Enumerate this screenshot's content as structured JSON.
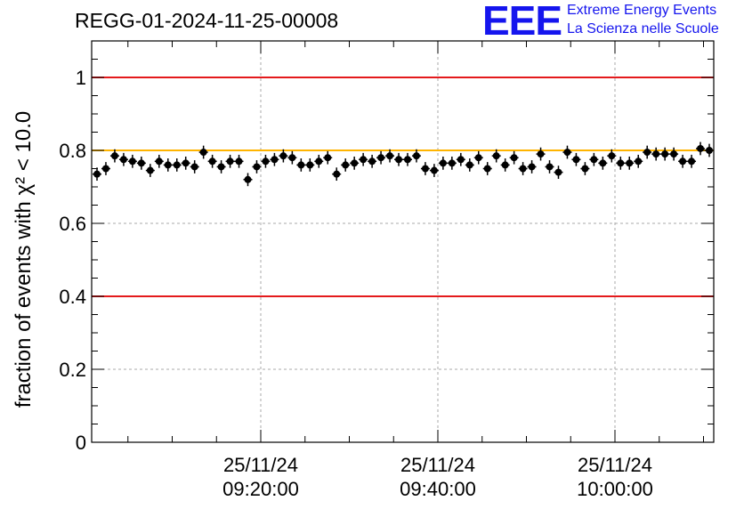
{
  "title": "REGG-01-2024-11-25-00008",
  "logo": {
    "letters": "EEE",
    "line1": "Extreme Energy Events",
    "line2": "La Scienza nelle Scuole",
    "color": "#1515ee"
  },
  "chart_data": {
    "type": "scatter",
    "ylabel": "fraction of events with χ² < 10.0",
    "ylim": [
      0,
      1.1
    ],
    "yticks": [
      "0",
      "0.2",
      "0.4",
      "0.6",
      "0.8",
      "1"
    ],
    "xticks": [
      {
        "date": "25/11/24",
        "time": "09:20:00"
      },
      {
        "date": "25/11/24",
        "time": "09:40:00"
      },
      {
        "date": "25/11/24",
        "time": "10:00:00"
      }
    ],
    "grid": true,
    "reference_lines": [
      {
        "y": 1.0,
        "color": "#e41a1c"
      },
      {
        "y": 0.8,
        "color": "#ffb400"
      },
      {
        "y": 0.4,
        "color": "#e41a1c"
      }
    ],
    "series": [
      {
        "color": "#000000",
        "error": 0.018,
        "values": [
          0.735,
          0.75,
          0.785,
          0.775,
          0.77,
          0.765,
          0.745,
          0.77,
          0.76,
          0.76,
          0.765,
          0.755,
          0.795,
          0.77,
          0.755,
          0.77,
          0.77,
          0.72,
          0.755,
          0.77,
          0.775,
          0.785,
          0.78,
          0.76,
          0.76,
          0.77,
          0.78,
          0.735,
          0.76,
          0.765,
          0.775,
          0.77,
          0.78,
          0.785,
          0.775,
          0.775,
          0.785,
          0.75,
          0.745,
          0.765,
          0.765,
          0.775,
          0.76,
          0.78,
          0.75,
          0.785,
          0.76,
          0.78,
          0.75,
          0.755,
          0.79,
          0.755,
          0.74,
          0.795,
          0.775,
          0.75,
          0.775,
          0.765,
          0.785,
          0.765,
          0.765,
          0.77,
          0.795,
          0.79,
          0.79,
          0.79,
          0.77,
          0.77,
          0.805,
          0.8
        ]
      }
    ]
  }
}
